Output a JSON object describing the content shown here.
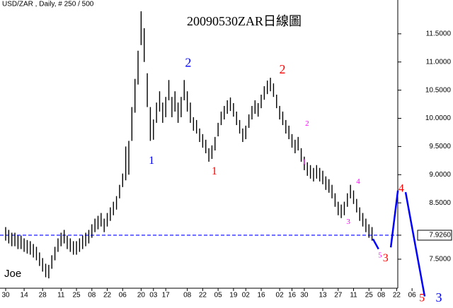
{
  "chart_data": {
    "type": "hilo",
    "header": "USD/ZAR , Daily, # 250 / 500",
    "title": "20090530ZAR日線圖",
    "author": "Joe",
    "color": "#000000",
    "xlim": [
      -1.84,
      145.3
    ],
    "ylim": [
      6.96,
      12.1
    ],
    "yticks": [
      {
        "value": 11.5,
        "label": "11.5000"
      },
      {
        "value": 11,
        "label": "11.0000"
      },
      {
        "value": 10.5,
        "label": "10.5000"
      },
      {
        "value": 10,
        "label": "10.0000"
      },
      {
        "value": 9.5,
        "label": "9.5000"
      },
      {
        "value": 9,
        "label": "9.0000"
      },
      {
        "value": 8.5,
        "label": "8.5000"
      },
      {
        "value": 7.926,
        "label": "7.9260"
      },
      {
        "value": 7.5,
        "label": "7.5000"
      }
    ],
    "xticks": [
      {
        "value": 0,
        "label": "30"
      },
      {
        "value": 6,
        "label": "14"
      },
      {
        "value": 12,
        "label": "28"
      },
      {
        "value": 18,
        "label": "11"
      },
      {
        "value": 23,
        "label": "25"
      },
      {
        "value": 28,
        "label": "08"
      },
      {
        "value": 33,
        "label": "22"
      },
      {
        "value": 38,
        "label": "06"
      },
      {
        "value": 44,
        "label": "20"
      },
      {
        "value": 48,
        "label": "03"
      },
      {
        "value": 52,
        "label": "17"
      },
      {
        "value": 59,
        "label": "08"
      },
      {
        "value": 64,
        "label": "22"
      },
      {
        "value": 69,
        "label": "05"
      },
      {
        "value": 74,
        "label": "19"
      },
      {
        "value": 78,
        "label": "02"
      },
      {
        "value": 83,
        "label": "16"
      },
      {
        "value": 89,
        "label": "02"
      },
      {
        "value": 93,
        "label": "16"
      },
      {
        "value": 97,
        "label": "30"
      },
      {
        "value": 103,
        "label": "13"
      },
      {
        "value": 108,
        "label": "27"
      },
      {
        "value": 113,
        "label": "11"
      },
      {
        "value": 118,
        "label": "25"
      },
      {
        "value": 122,
        "label": "08"
      },
      {
        "value": 127,
        "label": "22"
      },
      {
        "value": 132,
        "label": "06"
      }
    ],
    "high": [
      8.07,
      8.02,
      7.97,
      7.97,
      7.92,
      7.92,
      7.87,
      7.84,
      7.82,
      7.77,
      7.72,
      7.62,
      7.52,
      7.42,
      7.4,
      7.57,
      7.72,
      7.87,
      7.97,
      8.02,
      7.92,
      7.87,
      7.82,
      7.82,
      7.87,
      7.92,
      7.97,
      8.02,
      8.12,
      8.22,
      8.27,
      8.32,
      8.22,
      8.32,
      8.42,
      8.52,
      8.62,
      8.82,
      9.02,
      9.5,
      9.6,
      10.2,
      10.7,
      11.2,
      11.9,
      11.6,
      10.8,
      10.2,
      9.98,
      10.28,
      10.48,
      10.28,
      10.38,
      10.68,
      10.38,
      10.48,
      10.28,
      10.38,
      10.68,
      10.48,
      10.28,
      10.02,
      9.97,
      9.82,
      9.72,
      9.62,
      9.47,
      9.52,
      9.67,
      9.92,
      10.12,
      10.22,
      10.32,
      10.37,
      10.27,
      10.12,
      9.97,
      9.82,
      9.87,
      10.07,
      10.22,
      10.32,
      10.27,
      10.42,
      10.57,
      10.67,
      10.72,
      10.62,
      10.42,
      10.22,
      10.12,
      9.97,
      9.87,
      9.72,
      9.62,
      9.67,
      9.47,
      9.32,
      9.22,
      9.17,
      9.12,
      9.17,
      9.12,
      9.07,
      8.97,
      8.92,
      8.82,
      8.67,
      8.52,
      8.47,
      8.52,
      8.67,
      8.82,
      8.72,
      8.57,
      8.42,
      8.32,
      8.22,
      8.12,
      8.07
    ],
    "low": [
      7.83,
      7.78,
      7.73,
      7.73,
      7.68,
      7.68,
      7.63,
      7.6,
      7.58,
      7.53,
      7.48,
      7.38,
      7.28,
      7.18,
      7.16,
      7.33,
      7.48,
      7.63,
      7.73,
      7.78,
      7.68,
      7.63,
      7.58,
      7.58,
      7.63,
      7.68,
      7.73,
      7.78,
      7.88,
      7.98,
      8.03,
      8.08,
      7.98,
      8.08,
      8.18,
      8.28,
      8.38,
      8.58,
      8.78,
      8.9,
      9.0,
      9.6,
      10.1,
      10.6,
      11.3,
      11.0,
      10.2,
      9.6,
      9.62,
      9.92,
      10.12,
      9.92,
      10.02,
      10.32,
      10.02,
      10.12,
      9.92,
      10.02,
      10.32,
      10.12,
      9.92,
      9.78,
      9.73,
      9.58,
      9.48,
      9.38,
      9.23,
      9.28,
      9.43,
      9.68,
      9.88,
      9.98,
      10.08,
      10.13,
      10.03,
      9.88,
      9.73,
      9.58,
      9.63,
      9.83,
      9.98,
      10.08,
      10.03,
      10.18,
      10.33,
      10.43,
      10.48,
      10.38,
      10.18,
      9.98,
      9.88,
      9.73,
      9.63,
      9.48,
      9.38,
      9.43,
      9.23,
      9.08,
      8.98,
      8.93,
      8.88,
      8.93,
      8.88,
      8.83,
      8.73,
      8.68,
      8.58,
      8.43,
      8.28,
      8.23,
      8.28,
      8.43,
      8.58,
      8.48,
      8.33,
      8.18,
      8.08,
      7.98,
      7.88,
      7.83
    ],
    "hline": {
      "value": 7.926,
      "color": "#0000ff"
    },
    "projection": {
      "color": "#0000ff",
      "segments": [
        {
          "x": [
            119.3,
            121.1
          ],
          "y": [
            7.86,
            7.68
          ]
        },
        {
          "x": [
            125.1,
            127.4
          ],
          "y": [
            7.71,
            8.72
          ]
        },
        {
          "x": [
            129.9,
            136.1
          ],
          "y": [
            8.69,
            6.84
          ]
        }
      ]
    },
    "annotations": [
      {
        "text": "1",
        "x": 47.4,
        "y": 9.24,
        "color": "#0000ff",
        "size": 16
      },
      {
        "text": "2",
        "x": 59.3,
        "y": 10.97,
        "color": "#0000ff",
        "size": 18
      },
      {
        "text": "1",
        "x": 67.8,
        "y": 9.05,
        "color": "#ff0000",
        "size": 16
      },
      {
        "text": "2",
        "x": 89.9,
        "y": 10.85,
        "color": "#ff0000",
        "size": 18
      },
      {
        "text": "2",
        "x": 97.9,
        "y": 9.9,
        "color": "#ff00ff",
        "size": 11
      },
      {
        "text": "1",
        "x": 97.0,
        "y": 9.22,
        "color": "#ff00ff",
        "size": 11
      },
      {
        "text": "4",
        "x": 114.5,
        "y": 8.87,
        "color": "#ff00ff",
        "size": 11
      },
      {
        "text": "3",
        "x": 111.3,
        "y": 8.16,
        "color": "#ff00ff",
        "size": 11
      },
      {
        "text": "5",
        "x": 121.6,
        "y": 7.56,
        "color": "#ff00ff",
        "size": 10
      },
      {
        "text": "3",
        "x": 123.4,
        "y": 7.51,
        "color": "#ff0000",
        "size": 16
      },
      {
        "text": "4",
        "x": 128.5,
        "y": 8.74,
        "color": "#ff0000",
        "size": 16
      },
      {
        "text": "5",
        "x": 135.2,
        "y": 6.8,
        "color": "#ff0000",
        "size": 16
      },
      {
        "text": "3",
        "x": 140.7,
        "y": 6.8,
        "color": "#0000ff",
        "size": 18
      }
    ]
  }
}
